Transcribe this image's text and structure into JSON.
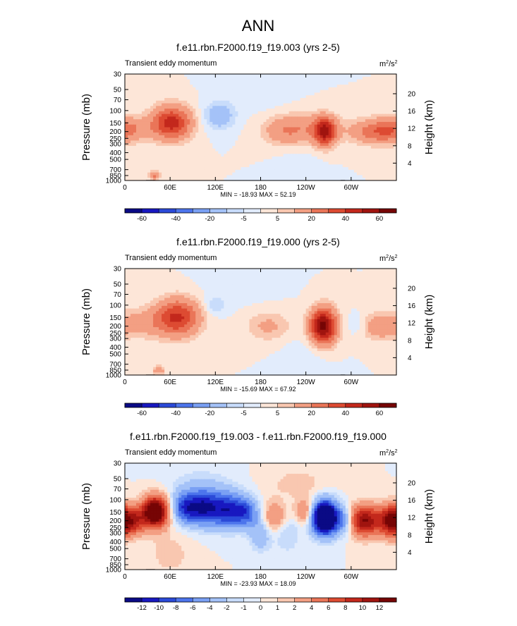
{
  "figure": {
    "title": "ANN"
  },
  "chart_data": [
    {
      "type": "heatmap",
      "title": "f.e11.rbn.F2000.f19_f19.003 (yrs 2-5)",
      "subtitle": "Transient eddy momentum",
      "units": "m²/s²",
      "units_base": "m",
      "units_sup1": "2",
      "units_mid": "/s",
      "units_sup2": "2",
      "xlabel": "",
      "ylabel": "Pressure (mb)",
      "ylabel_right": "Height (km)",
      "x_ticks": [
        "0",
        "60E",
        "120E",
        "180",
        "120W",
        "60W"
      ],
      "x_tick_lons": [
        0,
        60,
        120,
        180,
        240,
        300
      ],
      "xlim": [
        0,
        360
      ],
      "y_ticks": [
        "30",
        "50",
        "70",
        "100",
        "150",
        "200",
        "250",
        "300",
        "400",
        "500",
        "700",
        "850",
        "1000"
      ],
      "y_tick_values": [
        30,
        50,
        70,
        100,
        150,
        200,
        250,
        300,
        400,
        500,
        700,
        850,
        1000
      ],
      "ylim": [
        30,
        1000
      ],
      "height_ticks": [
        "4",
        "8",
        "12",
        "16",
        "20"
      ],
      "height_tick_values": [
        4,
        8,
        12,
        16,
        20
      ],
      "stats": "MIN = -18.93  MAX = 52.19",
      "min": -18.93,
      "max": 52.19,
      "colorbar_labels": [
        "-60",
        "-40",
        "-20",
        "-5",
        "5",
        "20",
        "40",
        "60"
      ],
      "colorbar_levels": [
        -70,
        -60,
        -50,
        -40,
        -30,
        -20,
        -10,
        -5,
        0,
        5,
        10,
        20,
        30,
        40,
        50,
        60,
        70
      ],
      "features": [
        {
          "lon": 62,
          "p": 150,
          "value": 45,
          "wlon": 18,
          "wlnp": 0.38
        },
        {
          "lon": 210,
          "p": 200,
          "value": 12,
          "wlon": 20,
          "wlnp": 0.33
        },
        {
          "lon": 240,
          "p": 180,
          "value": 14,
          "wlon": 30,
          "wlnp": 0.35
        },
        {
          "lon": 265,
          "p": 200,
          "value": 48,
          "wlon": 10,
          "wlnp": 0.32
        },
        {
          "lon": 335,
          "p": 200,
          "value": 26,
          "wlon": 25,
          "wlnp": 0.28
        },
        {
          "lon": 5,
          "p": 180,
          "value": 14,
          "wlon": 22,
          "wlnp": 0.3
        },
        {
          "lon": 125,
          "p": 120,
          "value": -18,
          "wlon": 14,
          "wlnp": 0.3
        },
        {
          "lon": 40,
          "p": 850,
          "value": 22,
          "wlon": 5,
          "wlnp": 0.1
        },
        {
          "lon": 170,
          "p": 60,
          "value": -3,
          "wlon": 30,
          "wlnp": 0.4
        },
        {
          "lon": 230,
          "p": 600,
          "value": -3,
          "wlon": 18,
          "wlnp": 0.4
        }
      ]
    },
    {
      "type": "heatmap",
      "title": "f.e11.rbn.F2000.f19_f19.000 (yrs 2-5)",
      "subtitle": "Transient eddy momentum",
      "units": "m²/s²",
      "units_base": "m",
      "units_sup1": "2",
      "units_mid": "/s",
      "units_sup2": "2",
      "xlabel": "",
      "ylabel": "Pressure (mb)",
      "ylabel_right": "Height (km)",
      "x_ticks": [
        "0",
        "60E",
        "120E",
        "180",
        "120W",
        "60W"
      ],
      "x_tick_lons": [
        0,
        60,
        120,
        180,
        240,
        300
      ],
      "xlim": [
        0,
        360
      ],
      "y_ticks": [
        "30",
        "50",
        "70",
        "100",
        "150",
        "200",
        "250",
        "300",
        "400",
        "500",
        "700",
        "850",
        "1000"
      ],
      "y_tick_values": [
        30,
        50,
        70,
        100,
        150,
        200,
        250,
        300,
        400,
        500,
        700,
        850,
        1000
      ],
      "ylim": [
        30,
        1000
      ],
      "height_ticks": [
        "4",
        "8",
        "12",
        "16",
        "20"
      ],
      "height_tick_values": [
        4,
        8,
        12,
        16,
        20
      ],
      "stats": "MIN = -15.69  MAX = 67.92",
      "min": -15.69,
      "max": 67.92,
      "colorbar_labels": [
        "-60",
        "-40",
        "-20",
        "-5",
        "5",
        "20",
        "40",
        "60"
      ],
      "colorbar_levels": [
        -70,
        -60,
        -50,
        -40,
        -30,
        -20,
        -10,
        -5,
        0,
        5,
        10,
        20,
        30,
        40,
        50,
        60,
        70
      ],
      "features": [
        {
          "lon": 70,
          "p": 150,
          "value": 42,
          "wlon": 20,
          "wlnp": 0.42
        },
        {
          "lon": 25,
          "p": 180,
          "value": 12,
          "wlon": 22,
          "wlnp": 0.35
        },
        {
          "lon": 190,
          "p": 200,
          "value": 12,
          "wlon": 20,
          "wlnp": 0.33
        },
        {
          "lon": 263,
          "p": 200,
          "value": 65,
          "wlon": 12,
          "wlnp": 0.4
        },
        {
          "lon": 338,
          "p": 200,
          "value": 18,
          "wlon": 20,
          "wlnp": 0.3
        },
        {
          "lon": 310,
          "p": 190,
          "value": -8,
          "wlon": 10,
          "wlnp": 0.25
        },
        {
          "lon": 120,
          "p": 100,
          "value": -10,
          "wlon": 10,
          "wlnp": 0.2
        },
        {
          "lon": 45,
          "p": 850,
          "value": 20,
          "wlon": 5,
          "wlnp": 0.1
        },
        {
          "lon": 150,
          "p": 50,
          "value": -3,
          "wlon": 30,
          "wlnp": 0.4
        },
        {
          "lon": 240,
          "p": 500,
          "value": -3,
          "wlon": 20,
          "wlnp": 0.4
        }
      ]
    },
    {
      "type": "heatmap",
      "title": "f.e11.rbn.F2000.f19_f19.003 - f.e11.rbn.F2000.f19_f19.000",
      "subtitle": "Transient eddy momentum",
      "units": "m²/s²",
      "units_base": "m",
      "units_sup1": "2",
      "units_mid": "/s",
      "units_sup2": "2",
      "xlabel": "",
      "ylabel": "Pressure (mb)",
      "ylabel_right": "Height (km)",
      "x_ticks": [
        "0",
        "60E",
        "120E",
        "180",
        "120W",
        "60W"
      ],
      "x_tick_lons": [
        0,
        60,
        120,
        180,
        240,
        300
      ],
      "xlim": [
        0,
        360
      ],
      "y_ticks": [
        "30",
        "50",
        "70",
        "100",
        "150",
        "200",
        "250",
        "300",
        "400",
        "500",
        "700",
        "850",
        "1000"
      ],
      "y_tick_values": [
        30,
        50,
        70,
        100,
        150,
        200,
        250,
        300,
        400,
        500,
        700,
        850,
        1000
      ],
      "ylim": [
        30,
        1000
      ],
      "height_ticks": [
        "4",
        "8",
        "12",
        "16",
        "20"
      ],
      "height_tick_values": [
        4,
        8,
        12,
        16,
        20
      ],
      "stats": "MIN = -23.93  MAX = 18.09",
      "min": -23.93,
      "max": 18.09,
      "colorbar_labels": [
        "-12",
        "-10",
        "-8",
        "-6",
        "-4",
        "-2",
        "-1",
        "0",
        "1",
        "2",
        "4",
        "6",
        "8",
        "10",
        "12"
      ],
      "colorbar_levels": [
        -14,
        -12,
        -10,
        -8,
        -6,
        -4,
        -2,
        -1,
        0,
        1,
        2,
        4,
        6,
        8,
        10,
        12,
        14
      ],
      "features": [
        {
          "lon": 40,
          "p": 150,
          "value": 17,
          "wlon": 12,
          "wlnp": 0.35
        },
        {
          "lon": 15,
          "p": 200,
          "value": 6,
          "wlon": 10,
          "wlnp": 0.3
        },
        {
          "lon": 80,
          "p": 130,
          "value": -9,
          "wlon": 12,
          "wlnp": 0.35
        },
        {
          "lon": 105,
          "p": 130,
          "value": -11,
          "wlon": 14,
          "wlnp": 0.4
        },
        {
          "lon": 135,
          "p": 140,
          "value": -10,
          "wlon": 14,
          "wlnp": 0.4
        },
        {
          "lon": 160,
          "p": 150,
          "value": -8,
          "wlon": 12,
          "wlnp": 0.35
        },
        {
          "lon": 200,
          "p": 180,
          "value": 5,
          "wlon": 14,
          "wlnp": 0.35
        },
        {
          "lon": 215,
          "p": 250,
          "value": -3,
          "wlon": 12,
          "wlnp": 0.5
        },
        {
          "lon": 265,
          "p": 180,
          "value": -22,
          "wlon": 12,
          "wlnp": 0.38
        },
        {
          "lon": 240,
          "p": 150,
          "value": 5,
          "wlon": 10,
          "wlnp": 0.3
        },
        {
          "lon": 318,
          "p": 200,
          "value": 12,
          "wlon": 14,
          "wlnp": 0.35
        },
        {
          "lon": 355,
          "p": 200,
          "value": 14,
          "wlon": 12,
          "wlnp": 0.35
        },
        {
          "lon": 290,
          "p": 200,
          "value": -5,
          "wlon": 8,
          "wlnp": 0.3
        },
        {
          "lon": 180,
          "p": 300,
          "value": -4,
          "wlon": 10,
          "wlnp": 0.4
        },
        {
          "lon": 100,
          "p": 60,
          "value": -1.5,
          "wlon": 30,
          "wlnp": 0.4
        },
        {
          "lon": 230,
          "p": 60,
          "value": 1.5,
          "wlon": 30,
          "wlnp": 0.4
        },
        {
          "lon": 60,
          "p": 600,
          "value": 1.5,
          "wlon": 20,
          "wlnp": 0.5
        }
      ]
    }
  ]
}
